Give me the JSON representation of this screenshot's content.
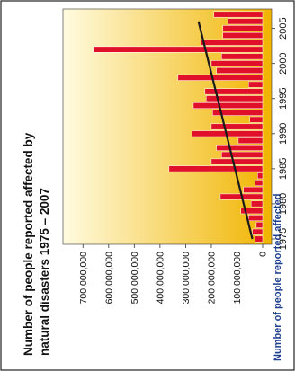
{
  "chart_data": {
    "type": "bar",
    "orientation": "rotated",
    "title": "Number of people reported affected by natural disasters 1975 – 2007",
    "ylabel": "Number of people reported affected",
    "xlabel": "",
    "ylim": [
      0,
      750000000
    ],
    "grid": false,
    "legend": "none",
    "colors": {
      "bar": "#e0102a",
      "bar_outline": "#ffffff",
      "trend": "#1a1a1a",
      "bg_light": "#fffbe0",
      "bg_dark": "#f0b400",
      "ylabel_color": "#1f3f8f"
    },
    "categories": [
      1975,
      1976,
      1977,
      1978,
      1979,
      1980,
      1981,
      1982,
      1983,
      1984,
      1985,
      1986,
      1987,
      1988,
      1989,
      1990,
      1991,
      1992,
      1993,
      1994,
      1995,
      1996,
      1997,
      1998,
      1999,
      2000,
      2001,
      2002,
      2003,
      2004,
      2005,
      2006,
      2007
    ],
    "values": [
      30000000,
      40000000,
      25000000,
      55000000,
      85000000,
      45000000,
      165000000,
      75000000,
      30000000,
      20000000,
      365000000,
      200000000,
      160000000,
      180000000,
      95000000,
      275000000,
      200000000,
      50000000,
      195000000,
      270000000,
      220000000,
      225000000,
      55000000,
      330000000,
      180000000,
      200000000,
      160000000,
      660000000,
      240000000,
      155000000,
      155000000,
      135000000,
      190000000
    ],
    "trend": {
      "x": [
        1975,
        2006
      ],
      "y": [
        40000000,
        250000000
      ]
    },
    "x_ticks": [
      1975,
      1980,
      1985,
      1990,
      1995,
      2000,
      2005
    ],
    "y_ticks": [
      {
        "v": 0,
        "label": "0"
      },
      {
        "v": 100000000,
        "label": "100,000,000"
      },
      {
        "v": 200000000,
        "label": "200,000,000"
      },
      {
        "v": 300000000,
        "label": "300,000,000"
      },
      {
        "v": 400000000,
        "label": "400,000,000"
      },
      {
        "v": 500000000,
        "label": "500,000,000"
      },
      {
        "v": 600000000,
        "label": "600,000,000"
      },
      {
        "v": 700000000,
        "label": "700,000,000"
      }
    ]
  }
}
